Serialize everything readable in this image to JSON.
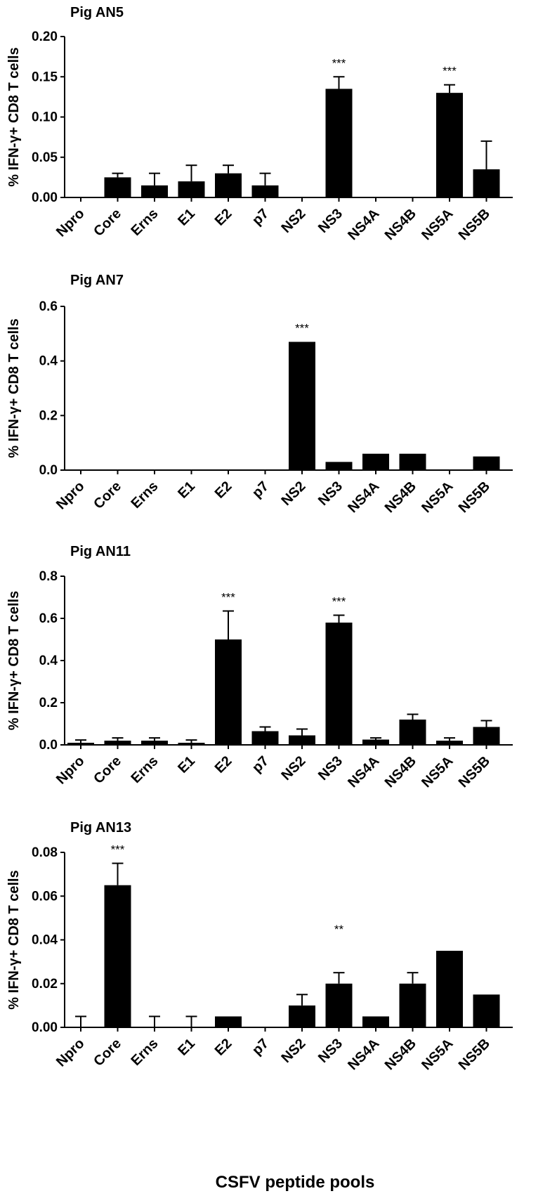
{
  "x_axis_label": "CSFV peptide pools",
  "chart_data": [
    {
      "type": "bar",
      "title": "Pig AN5",
      "ylabel": "% IFN-γ+ CD8 T cells",
      "ylim": [
        0,
        0.2
      ],
      "yticks": [
        "0.00",
        "0.05",
        "0.10",
        "0.15",
        "0.20"
      ],
      "categories": [
        "Npro",
        "Core",
        "Erns",
        "E1",
        "E2",
        "p7",
        "NS2",
        "NS3",
        "NS4A",
        "NS4B",
        "NS5A",
        "NS5B"
      ],
      "values": [
        0,
        0.025,
        0.015,
        0.02,
        0.03,
        0.015,
        0,
        0.135,
        0,
        0,
        0.13,
        0.035
      ],
      "errors": [
        0,
        0.005,
        0.015,
        0.02,
        0.01,
        0.015,
        0,
        0.015,
        0,
        0,
        0.01,
        0.035
      ],
      "significance": [
        "",
        "",
        "",
        "",
        "",
        "",
        "",
        "***",
        "",
        "",
        "***",
        ""
      ]
    },
    {
      "type": "bar",
      "title": "Pig AN7",
      "ylabel": "% IFN-γ+ CD8 T cells",
      "ylim": [
        0,
        0.6
      ],
      "yticks": [
        "0.0",
        "0.2",
        "0.4",
        "0.6"
      ],
      "categories": [
        "Npro",
        "Core",
        "Erns",
        "E1",
        "E2",
        "p7",
        "NS2",
        "NS3",
        "NS4A",
        "NS4B",
        "NS5A",
        "NS5B"
      ],
      "values": [
        0,
        0,
        0,
        0,
        0,
        0,
        0.47,
        0.03,
        0.06,
        0.06,
        0,
        0.05
      ],
      "errors": [
        0,
        0,
        0,
        0,
        0,
        0,
        0,
        0,
        0,
        0,
        0,
        0
      ],
      "significance": [
        "",
        "",
        "",
        "",
        "",
        "",
        "***",
        "",
        "",
        "",
        "",
        ""
      ]
    },
    {
      "type": "bar",
      "title": "Pig AN11",
      "ylabel": "% IFN-γ+ CD8 T cells",
      "ylim": [
        0,
        0.8
      ],
      "yticks": [
        "0.0",
        "0.2",
        "0.4",
        "0.6",
        "0.8"
      ],
      "categories": [
        "Npro",
        "Core",
        "Erns",
        "E1",
        "E2",
        "p7",
        "NS2",
        "NS3",
        "NS4A",
        "NS4B",
        "NS5A",
        "NS5B"
      ],
      "values": [
        0.01,
        0.02,
        0.02,
        0.01,
        0.5,
        0.065,
        0.045,
        0.58,
        0.025,
        0.12,
        0.02,
        0.085
      ],
      "errors": [
        0.013,
        0.013,
        0.013,
        0.013,
        0.135,
        0.02,
        0.03,
        0.035,
        0.008,
        0.025,
        0.013,
        0.03
      ],
      "significance": [
        "",
        "",
        "",
        "",
        "***",
        "",
        "",
        "***",
        "",
        "",
        "",
        ""
      ]
    },
    {
      "type": "bar",
      "title": "Pig AN13",
      "ylabel": "% IFN-γ+ CD8 T cells",
      "ylim": [
        0,
        0.08
      ],
      "yticks": [
        "0.00",
        "0.02",
        "0.04",
        "0.06",
        "0.08"
      ],
      "categories": [
        "Npro",
        "Core",
        "Erns",
        "E1",
        "E2",
        "p7",
        "NS2",
        "NS3",
        "NS4A",
        "NS4B",
        "NS5A",
        "NS5B"
      ],
      "values": [
        0,
        0.065,
        0,
        0,
        0.005,
        0,
        0.01,
        0.02,
        0.005,
        0.02,
        0.035,
        0.015
      ],
      "errors": [
        0.005,
        0.01,
        0.005,
        0.005,
        0,
        0,
        0.005,
        0.005,
        0,
        0.005,
        0,
        0
      ],
      "significance": [
        "",
        "***",
        "",
        "",
        "",
        "",
        "",
        "**",
        "",
        "",
        "",
        ""
      ]
    }
  ]
}
